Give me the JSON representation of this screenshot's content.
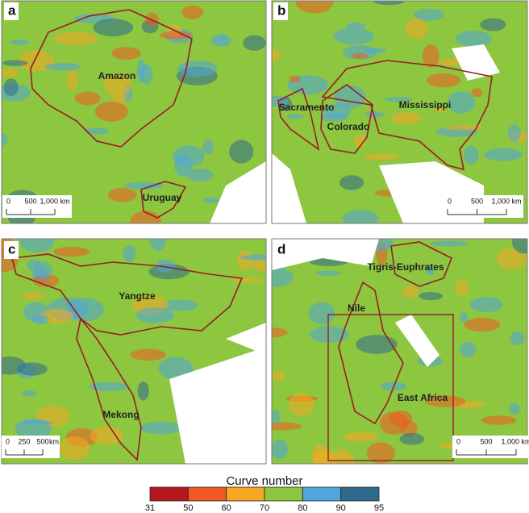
{
  "panels": [
    {
      "letter": "a",
      "basins": [
        "Amazon",
        "Uruguay"
      ],
      "scale_labels": [
        "0",
        "500",
        "1,000 km"
      ]
    },
    {
      "letter": "b",
      "basins": [
        "Sacramento",
        "Colorado",
        "Mississippi"
      ],
      "scale_labels": [
        "0",
        "500",
        "1,000 km"
      ]
    },
    {
      "letter": "c",
      "basins": [
        "Yangtze",
        "Mekong"
      ],
      "scale_labels": [
        "0",
        "250",
        "500",
        "km"
      ]
    },
    {
      "letter": "d",
      "basins": [
        "Tigris-Euphrates",
        "Nile",
        "East Africa"
      ],
      "scale_labels": [
        "0",
        "500",
        "1,000 km"
      ]
    }
  ],
  "legend": {
    "title": "Curve number",
    "breaks": [
      31,
      50,
      60,
      70,
      80,
      90,
      95
    ],
    "colors": [
      "#b5191d",
      "#f05a22",
      "#f7a823",
      "#8dc63f",
      "#4ea6dc",
      "#2f6a8c"
    ]
  }
}
